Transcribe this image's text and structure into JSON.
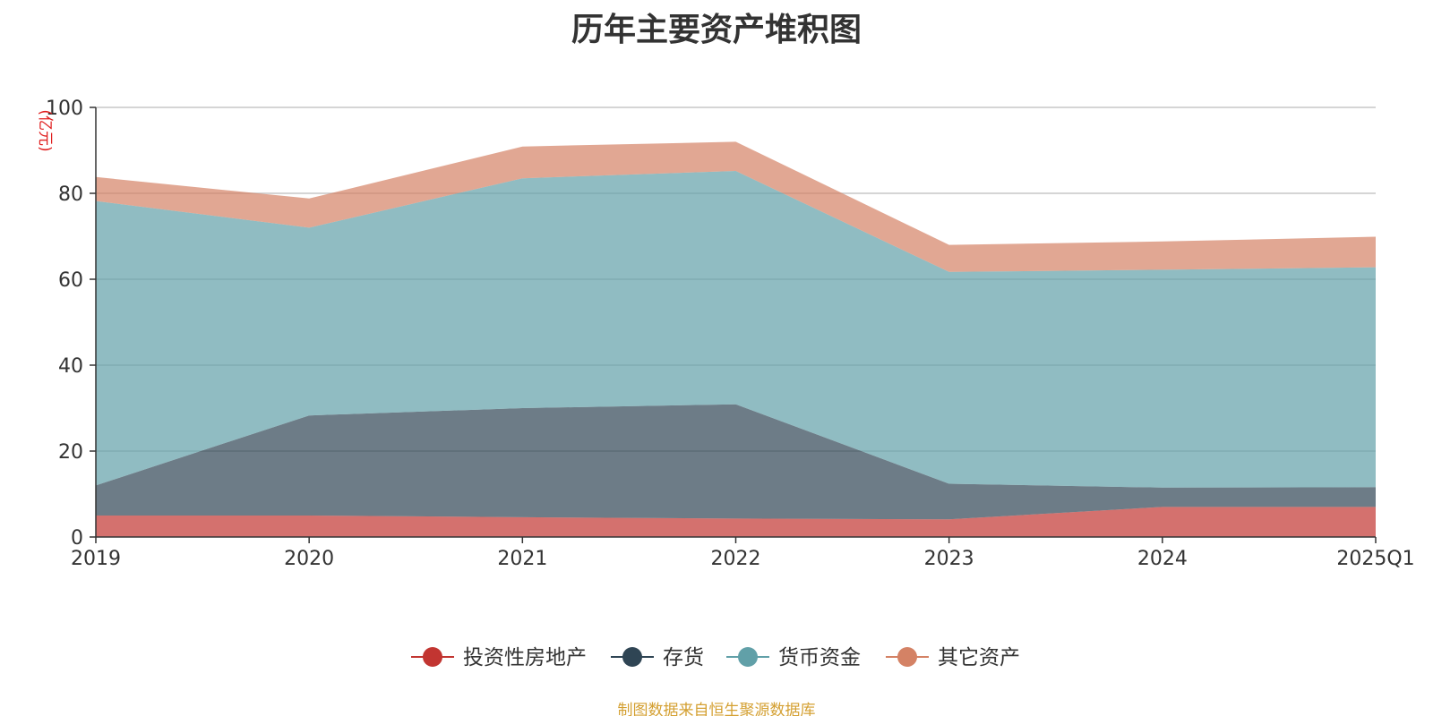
{
  "title": "历年主要资产堆积图",
  "source_note": "制图数据来自恒生聚源数据库",
  "source_color": "#d4a032",
  "unit_color": "#e02020",
  "chart_data": {
    "type": "area",
    "stacked": true,
    "title": "历年主要资产堆积图",
    "unit": "(亿元)",
    "categories": [
      "2019",
      "2020",
      "2021",
      "2022",
      "2023",
      "2024",
      "2025Q1"
    ],
    "ylim": [
      0,
      100
    ],
    "yticks": [
      0,
      20,
      40,
      60,
      80,
      100
    ],
    "grid": true,
    "legend_position": "bottom",
    "series": [
      {
        "name": "投资性房地产",
        "color": "#c23531",
        "values": [
          5.0,
          5.0,
          4.6,
          4.3,
          4.1,
          7.0,
          7.0
        ]
      },
      {
        "name": "存货",
        "color": "#2f4554",
        "values": [
          7.0,
          23.3,
          25.4,
          26.6,
          8.3,
          4.5,
          4.6
        ]
      },
      {
        "name": "货币资金",
        "color": "#61a0a8",
        "values": [
          66.2,
          43.7,
          53.5,
          54.3,
          49.3,
          50.7,
          51.2
        ]
      },
      {
        "name": "其它资产",
        "color": "#d48265",
        "values": [
          5.6,
          6.8,
          7.4,
          6.8,
          6.3,
          6.6,
          7.1
        ]
      }
    ]
  }
}
